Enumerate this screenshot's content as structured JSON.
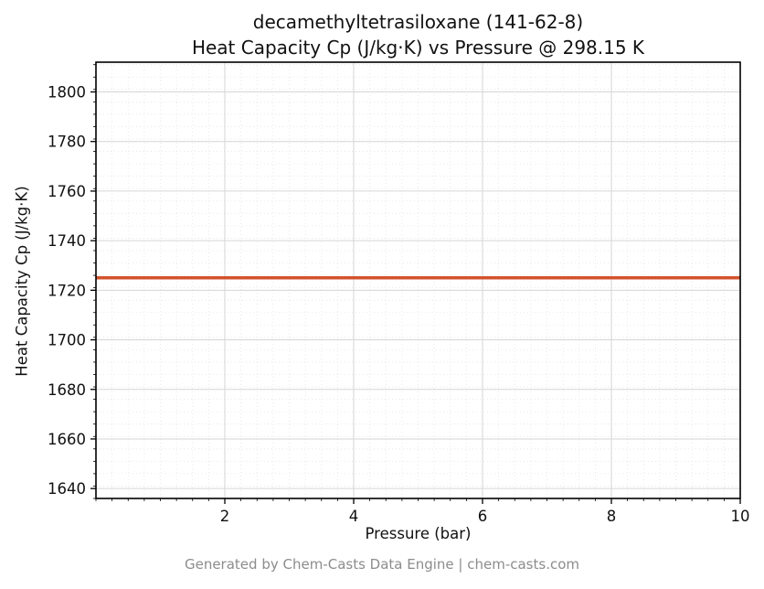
{
  "title_line1": "decamethyltetrasiloxane (141-62-8)",
  "title_line2": "Heat Capacity Cp (J/kg·K) vs Pressure @ 298.15 K",
  "footer_text": "Generated by Chem-Casts Data Engine | chem-casts.com",
  "colors": {
    "line": "#d2522b",
    "grid_major": "#d6d6d6",
    "grid_minor": "#e4e4e4",
    "spine": "#000000",
    "tick_label": "#111111",
    "footer": "#8c8c8c"
  },
  "chart_data": {
    "type": "line",
    "title": "decamethyltetrasiloxane (141-62-8)",
    "subtitle": "Heat Capacity Cp (J/kg·K) vs Pressure @ 298.15 K",
    "xlabel": "Pressure (bar)",
    "ylabel": "Heat Capacity Cp (J/kg·K)",
    "xlim": [
      0,
      10
    ],
    "ylim": [
      1636,
      1812
    ],
    "x_ticks": [
      2,
      4,
      6,
      8,
      10
    ],
    "y_ticks": [
      1640,
      1660,
      1680,
      1700,
      1720,
      1740,
      1760,
      1780,
      1800
    ],
    "x_minor_step": 0.25,
    "y_minor_step": 5,
    "grid": true,
    "legend": "none",
    "series": [
      {
        "name": "Heat Capacity Cp",
        "color": "#d2522b",
        "x": [
          0,
          10
        ],
        "y": [
          1725,
          1725
        ],
        "note": "constant Cp = 1725 J/kg·K across 0–10 bar at 298.15 K"
      }
    ]
  }
}
